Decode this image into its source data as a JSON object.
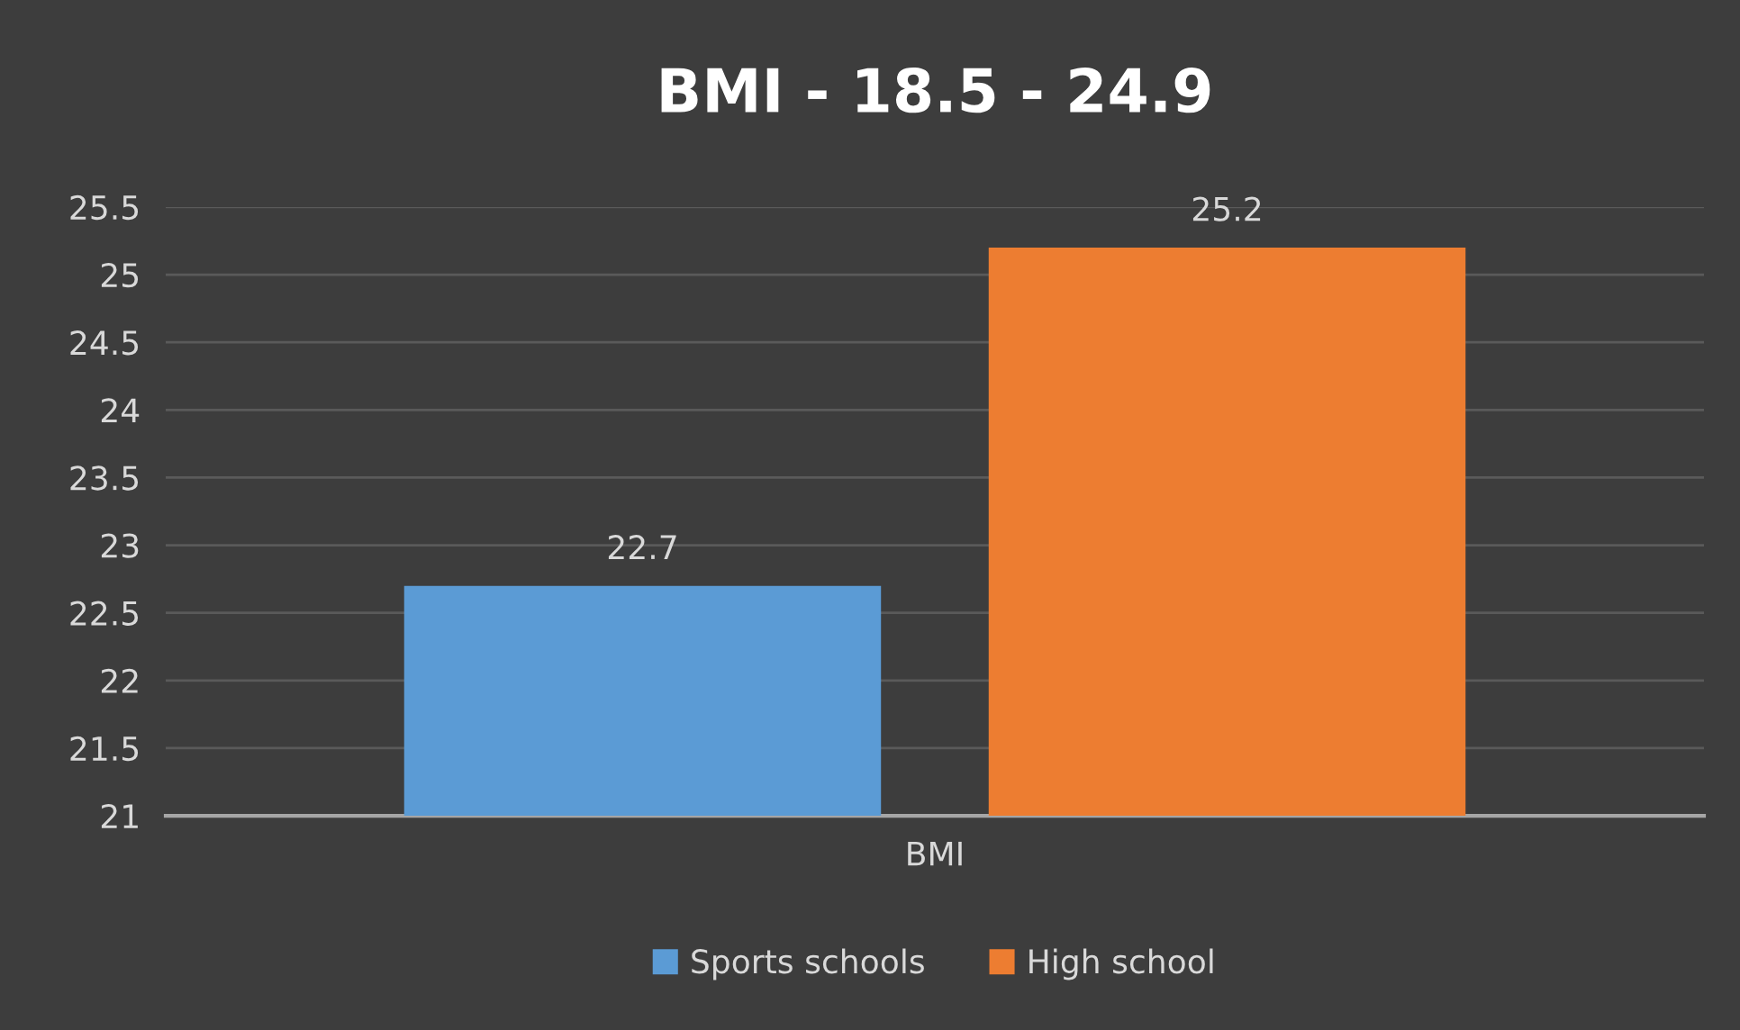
{
  "chart_data": {
    "type": "bar",
    "title": "BMI - 18.5 - 24.9",
    "categories": [
      "BMI"
    ],
    "series": [
      {
        "name": "Sports schools",
        "color": "#5b9bd5",
        "values": [
          22.7
        ]
      },
      {
        "name": "High school",
        "color": "#ed7d31",
        "values": [
          25.2
        ]
      }
    ],
    "ylim": [
      21,
      25.5
    ],
    "yticks": [
      21,
      21.5,
      22,
      22.5,
      23,
      23.5,
      24,
      24.5,
      25,
      25.5
    ],
    "grid": "y",
    "legend": "bottom",
    "data_labels": true
  }
}
